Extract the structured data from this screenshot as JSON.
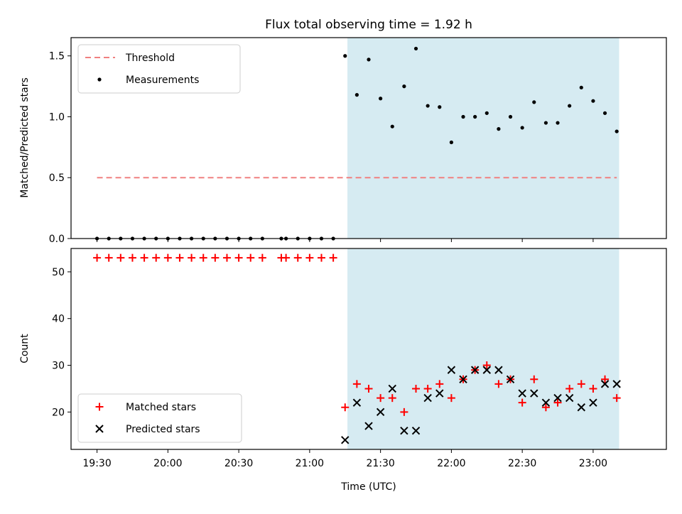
{
  "figure": {
    "title": "Flux total observing time = 1.92 h",
    "xlabel": "Time (UTC)",
    "x_ticks": [
      "19:30",
      "20:00",
      "20:30",
      "21:00",
      "21:30",
      "22:00",
      "22:30",
      "23:00"
    ],
    "highlight_span": {
      "start": "21:16",
      "end": "23:11",
      "color": "#add8e6"
    }
  },
  "chart_data": [
    {
      "type": "scatter",
      "title": "Flux total observing time = 1.92 h",
      "xlabel": "",
      "ylabel": "Matched/Predicted stars",
      "ylim": [
        0,
        1.65
      ],
      "yticks": [
        "0.0",
        "0.5",
        "1.0",
        "1.5"
      ],
      "xlim": [
        "19:19",
        "23:31"
      ],
      "legend": "top-left",
      "series": [
        {
          "name": "Threshold",
          "kind": "dashed-line",
          "color": "#f08080",
          "x": [
            "19:30",
            "23:10"
          ],
          "values": [
            0.5,
            0.5
          ]
        },
        {
          "name": "Measurements",
          "kind": "dot",
          "color": "#000000",
          "x": [
            "19:30",
            "19:35",
            "19:40",
            "19:45",
            "19:50",
            "19:55",
            "20:00",
            "20:05",
            "20:10",
            "20:15",
            "20:20",
            "20:25",
            "20:30",
            "20:35",
            "20:40",
            "20:48",
            "20:50",
            "20:55",
            "21:00",
            "21:05",
            "21:10",
            "21:15",
            "21:20",
            "21:25",
            "21:30",
            "21:35",
            "21:40",
            "21:45",
            "21:50",
            "21:55",
            "22:00",
            "22:05",
            "22:10",
            "22:15",
            "22:20",
            "22:25",
            "22:30",
            "22:35",
            "22:40",
            "22:45",
            "22:50",
            "22:55",
            "23:00",
            "23:05",
            "23:10"
          ],
          "values": [
            0,
            0,
            0,
            0,
            0,
            0,
            0,
            0,
            0,
            0,
            0,
            0,
            0,
            0,
            0,
            0,
            0,
            0,
            0,
            0,
            0,
            1.5,
            1.18,
            1.47,
            1.15,
            0.92,
            1.25,
            1.56,
            1.09,
            1.08,
            0.79,
            1.0,
            1.0,
            1.03,
            0.9,
            1.0,
            0.91,
            1.12,
            0.95,
            0.95,
            1.09,
            1.24,
            1.13,
            1.03,
            0.88
          ]
        }
      ]
    },
    {
      "type": "scatter",
      "xlabel": "Time (UTC)",
      "ylabel": "Count",
      "ylim": [
        12,
        55
      ],
      "yticks": [
        "20",
        "30",
        "40",
        "50"
      ],
      "xlim": [
        "19:19",
        "23:31"
      ],
      "legend": "bottom-left",
      "series": [
        {
          "name": "Matched stars",
          "marker": "plus",
          "color": "#ff0000",
          "x": [
            "19:30",
            "19:35",
            "19:40",
            "19:45",
            "19:50",
            "19:55",
            "20:00",
            "20:05",
            "20:10",
            "20:15",
            "20:20",
            "20:25",
            "20:30",
            "20:35",
            "20:40",
            "20:48",
            "20:50",
            "20:55",
            "21:00",
            "21:05",
            "21:10",
            "21:15",
            "21:20",
            "21:25",
            "21:30",
            "21:35",
            "21:40",
            "21:45",
            "21:50",
            "21:55",
            "22:00",
            "22:05",
            "22:10",
            "22:15",
            "22:20",
            "22:25",
            "22:30",
            "22:35",
            "22:40",
            "22:45",
            "22:50",
            "22:55",
            "23:00",
            "23:05",
            "23:10"
          ],
          "values": [
            53,
            53,
            53,
            53,
            53,
            53,
            53,
            53,
            53,
            53,
            53,
            53,
            53,
            53,
            53,
            53,
            53,
            53,
            53,
            53,
            53,
            21,
            26,
            25,
            23,
            23,
            20,
            25,
            25,
            26,
            23,
            27,
            29,
            30,
            26,
            27,
            22,
            27,
            21,
            22,
            25,
            26,
            25,
            27,
            23
          ]
        },
        {
          "name": "Predicted stars",
          "marker": "x",
          "color": "#000000",
          "x": [
            "21:15",
            "21:20",
            "21:25",
            "21:30",
            "21:35",
            "21:40",
            "21:45",
            "21:50",
            "21:55",
            "22:00",
            "22:05",
            "22:10",
            "22:15",
            "22:20",
            "22:25",
            "22:30",
            "22:35",
            "22:40",
            "22:45",
            "22:50",
            "22:55",
            "23:00",
            "23:05",
            "23:10"
          ],
          "values": [
            14,
            22,
            17,
            20,
            25,
            16,
            16,
            23,
            24,
            29,
            27,
            29,
            29,
            29,
            27,
            24,
            24,
            22,
            23,
            23,
            21,
            22,
            26,
            26
          ]
        }
      ]
    }
  ]
}
